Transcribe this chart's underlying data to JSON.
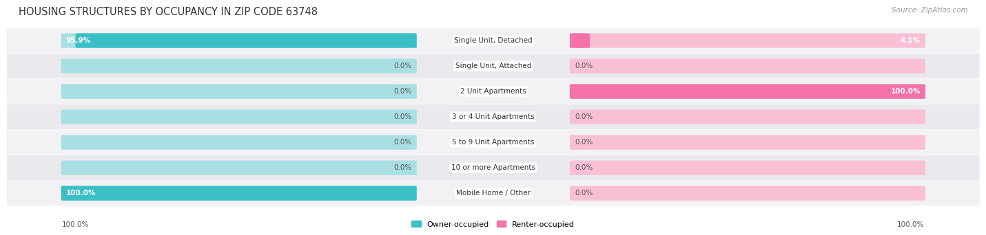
{
  "title": "HOUSING STRUCTURES BY OCCUPANCY IN ZIP CODE 63748",
  "source": "Source: ZipAtlas.com",
  "categories": [
    "Single Unit, Detached",
    "Single Unit, Attached",
    "2 Unit Apartments",
    "3 or 4 Unit Apartments",
    "5 to 9 Unit Apartments",
    "10 or more Apartments",
    "Mobile Home / Other"
  ],
  "owner_pct": [
    95.9,
    0.0,
    0.0,
    0.0,
    0.0,
    0.0,
    100.0
  ],
  "renter_pct": [
    4.1,
    0.0,
    100.0,
    0.0,
    0.0,
    0.0,
    0.0
  ],
  "owner_color": "#3bbfc6",
  "renter_color": "#f472a8",
  "owner_color_light": "#a8dfe2",
  "renter_color_light": "#f9c0d5",
  "figsize": [
    14.06,
    3.41
  ],
  "dpi": 100,
  "title_fontsize": 10.5,
  "label_fontsize": 7.5,
  "legend_fontsize": 8,
  "value_fontsize": 7.5
}
